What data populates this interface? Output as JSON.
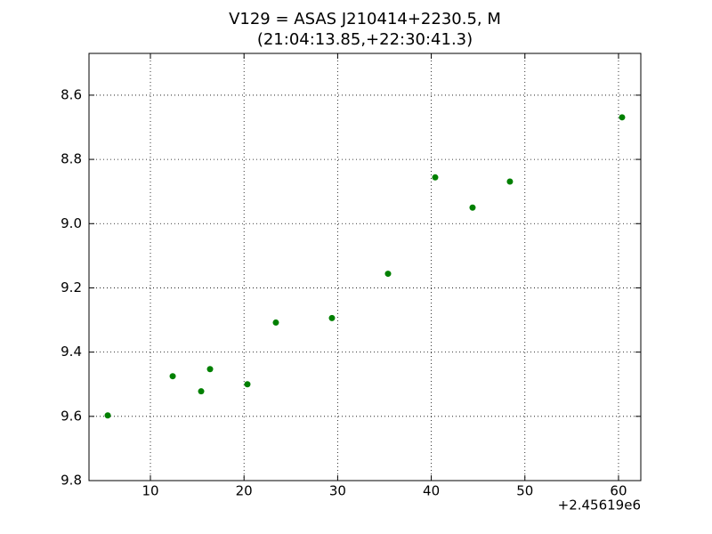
{
  "chart_data": {
    "type": "scatter",
    "title": "V129 = ASAS J210414+2230.5, M",
    "subtitle": "(21:04:13.85,+22:30:41.3)",
    "x_offset_label": "+2.45619e6",
    "x": [
      5.44,
      12.38,
      15.42,
      16.37,
      20.36,
      23.4,
      29.39,
      35.38,
      40.42,
      44.41,
      48.4,
      60.38
    ],
    "values": [
      9.597,
      9.475,
      9.522,
      9.453,
      9.5,
      9.308,
      9.294,
      9.156,
      8.856,
      8.95,
      8.869,
      8.669
    ],
    "color": "#008000",
    "xlim": [
      3.44,
      62.38
    ],
    "ylim": [
      9.8,
      8.47
    ],
    "xticks": [
      10,
      20,
      30,
      40,
      50,
      60
    ],
    "yticks": [
      8.6,
      8.8,
      {
        "value": 9,
        "label": "9.0"
      },
      9.2,
      9.4,
      9.6,
      9.8
    ],
    "grid": true
  }
}
